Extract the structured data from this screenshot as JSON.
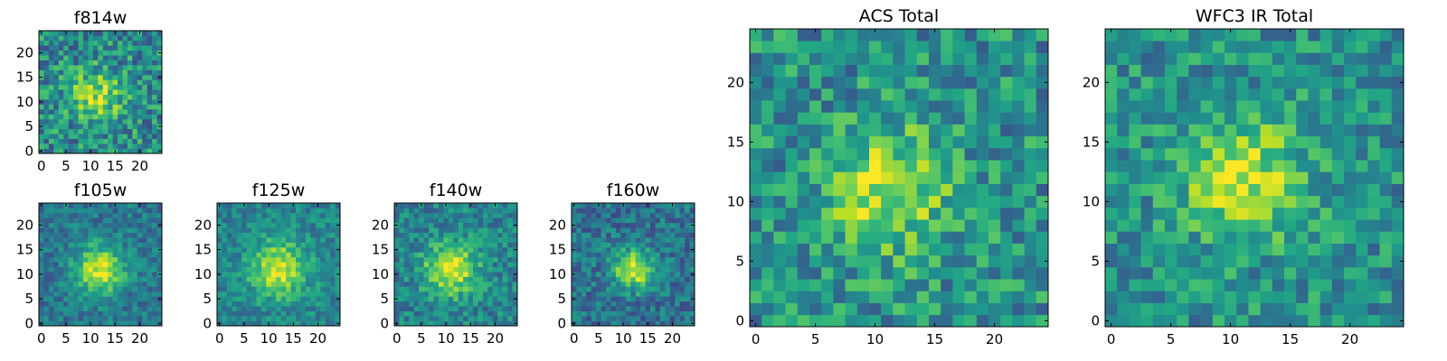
{
  "chart_data": {
    "type": "heatmap",
    "colormap": "viridis",
    "grid": false,
    "panels": [
      {
        "title": "f814w",
        "size": 25,
        "xlim": [
          0,
          24
        ],
        "ylim": [
          0,
          24
        ],
        "xticks": [
          "0",
          "5",
          "10",
          "15",
          "20"
        ],
        "yticks": [
          "0",
          "5",
          "10",
          "15",
          "20"
        ],
        "source": {
          "cx": 11,
          "cy": 11,
          "sigma": 3.5,
          "peak": 0.42,
          "base": 0.48,
          "noise": 0.5,
          "seed": 814
        }
      },
      {
        "title": "f105w",
        "size": 25,
        "xlim": [
          0,
          24
        ],
        "ylim": [
          0,
          24
        ],
        "xticks": [
          "0",
          "5",
          "10",
          "15",
          "20"
        ],
        "yticks": [
          "0",
          "5",
          "10",
          "15",
          "20"
        ],
        "source": {
          "cx": 12,
          "cy": 11,
          "sigma": 3.5,
          "peak": 0.55,
          "base": 0.4,
          "noise": 0.3,
          "seed": 105
        }
      },
      {
        "title": "f125w",
        "size": 25,
        "xlim": [
          0,
          24
        ],
        "ylim": [
          0,
          24
        ],
        "xticks": [
          "0",
          "5",
          "10",
          "15",
          "20"
        ],
        "yticks": [
          "0",
          "5",
          "10",
          "15",
          "20"
        ],
        "source": {
          "cx": 12,
          "cy": 11,
          "sigma": 4.0,
          "peak": 0.5,
          "base": 0.45,
          "noise": 0.3,
          "seed": 125
        }
      },
      {
        "title": "f140w",
        "size": 25,
        "xlim": [
          0,
          24
        ],
        "ylim": [
          0,
          24
        ],
        "xticks": [
          "0",
          "5",
          "10",
          "15",
          "20"
        ],
        "yticks": [
          "0",
          "5",
          "10",
          "15",
          "20"
        ],
        "source": {
          "cx": 11,
          "cy": 11,
          "sigma": 3.8,
          "peak": 0.5,
          "base": 0.45,
          "noise": 0.35,
          "seed": 140
        }
      },
      {
        "title": "f160w",
        "size": 25,
        "xlim": [
          0,
          24
        ],
        "ylim": [
          0,
          24
        ],
        "xticks": [
          "0",
          "5",
          "10",
          "15",
          "20"
        ],
        "yticks": [
          "0",
          "5",
          "10",
          "15",
          "20"
        ],
        "source": {
          "cx": 12,
          "cy": 11,
          "sigma": 2.8,
          "peak": 0.6,
          "base": 0.38,
          "noise": 0.35,
          "seed": 160
        }
      },
      {
        "title": "ACS Total",
        "size": 25,
        "xlim": [
          0,
          24
        ],
        "ylim": [
          0,
          24
        ],
        "xticks": [
          "0",
          "5",
          "10",
          "15",
          "20"
        ],
        "yticks": [
          "0",
          "5",
          "10",
          "15",
          "20"
        ],
        "source": {
          "cx": 11,
          "cy": 11,
          "sigma": 3.5,
          "peak": 0.42,
          "base": 0.5,
          "noise": 0.45,
          "seed": 2001
        }
      },
      {
        "title": "WFC3 IR Total",
        "size": 25,
        "xlim": [
          0,
          24
        ],
        "ylim": [
          0,
          24
        ],
        "xticks": [
          "0",
          "5",
          "10",
          "15",
          "20"
        ],
        "yticks": [
          "0",
          "5",
          "10",
          "15",
          "20"
        ],
        "source": {
          "cx": 11,
          "cy": 12,
          "sigma": 3.5,
          "peak": 0.42,
          "base": 0.5,
          "noise": 0.4,
          "seed": 3001
        }
      }
    ]
  }
}
